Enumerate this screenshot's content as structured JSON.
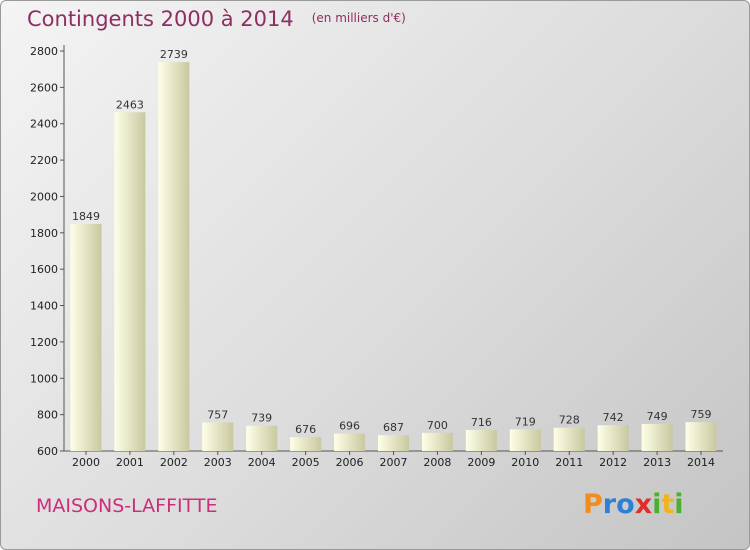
{
  "title": "Contingents 2000 à 2014",
  "unit": "(en milliers d'€)",
  "city": "MAISONS-LAFFITTE",
  "logo": {
    "text": "Proxiti",
    "letters": [
      {
        "ch": "P",
        "color": "#f28c1e"
      },
      {
        "ch": "r",
        "color": "#2f7fd6"
      },
      {
        "ch": "o",
        "color": "#2f7fd6"
      },
      {
        "ch": "x",
        "color": "#e22d2d"
      },
      {
        "ch": "i",
        "color": "#4caf2f"
      },
      {
        "ch": "t",
        "color": "#f2b41e"
      },
      {
        "ch": "i",
        "color": "#4caf2f"
      }
    ]
  },
  "colors": {
    "title": "#8e2e63",
    "city": "#cc2e7a",
    "bar_light": "#ffffe0",
    "bar_dark": "#c9c9a4"
  },
  "chart_data": {
    "type": "bar",
    "categories": [
      "2000",
      "2001",
      "2002",
      "2003",
      "2004",
      "2005",
      "2006",
      "2007",
      "2008",
      "2009",
      "2010",
      "2011",
      "2012",
      "2013",
      "2014"
    ],
    "values": [
      1849,
      2463,
      2739,
      757,
      739,
      676,
      696,
      687,
      700,
      716,
      719,
      728,
      742,
      749,
      759
    ],
    "yticks": [
      600,
      800,
      1000,
      1200,
      1400,
      1600,
      1800,
      2000,
      2200,
      2400,
      2600,
      2800
    ],
    "ylim": [
      600,
      2800
    ],
    "grid": false
  }
}
